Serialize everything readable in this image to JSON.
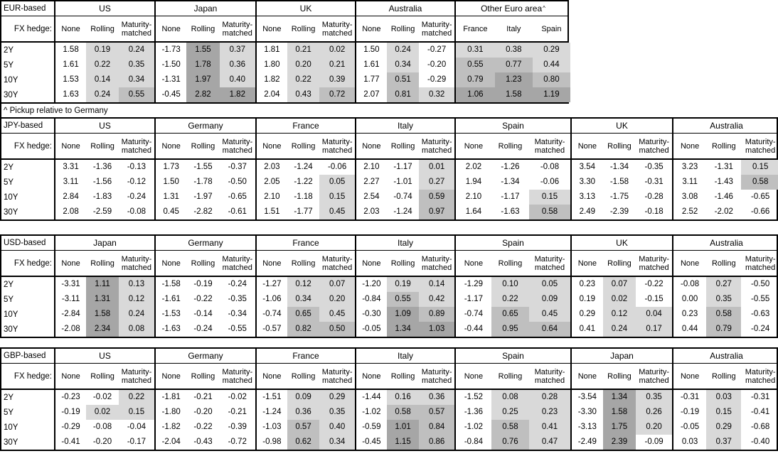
{
  "note": {
    "text": "^ Pickup relative to Germany"
  },
  "labels": {
    "fx_hedge": "FX hedge:",
    "tenors": [
      "2Y",
      "5Y",
      "10Y",
      "30Y"
    ],
    "hedge_columns": [
      "None",
      "Rolling",
      "Maturity-matched"
    ]
  },
  "shading": {
    "low": "#d9d9d9",
    "mid": "#bfbfbf",
    "high": "#a6a6a6",
    "rule": "value 0 to 0.5 = low, 0.5 to 1 = mid, 1+ = high; negatives and None column unshaded"
  },
  "tables": [
    {
      "label": "EUR-based",
      "blocks": [
        {
          "country": "US",
          "rows": [
            [
              "1.58",
              "0.19",
              "0.24"
            ],
            [
              "1.61",
              "0.22",
              "0.35"
            ],
            [
              "1.53",
              "0.14",
              "0.34"
            ],
            [
              "1.63",
              "0.24",
              "0.55"
            ]
          ]
        },
        {
          "country": "Japan",
          "rows": [
            [
              "-1.73",
              "1.55",
              "0.37"
            ],
            [
              "-1.50",
              "1.78",
              "0.36"
            ],
            [
              "-1.31",
              "1.97",
              "0.40"
            ],
            [
              "-0.45",
              "2.82",
              "1.82"
            ]
          ]
        },
        {
          "country": "UK",
          "rows": [
            [
              "1.81",
              "0.21",
              "0.02"
            ],
            [
              "1.80",
              "0.20",
              "0.21"
            ],
            [
              "1.82",
              "0.22",
              "0.39"
            ],
            [
              "2.04",
              "0.43",
              "0.72"
            ]
          ]
        },
        {
          "country": "Australia",
          "rows": [
            [
              "1.50",
              "0.24",
              "-0.27"
            ],
            [
              "1.61",
              "0.34",
              "-0.20"
            ],
            [
              "1.77",
              "0.51",
              "-0.29"
            ],
            [
              "2.07",
              "0.81",
              "0.32"
            ]
          ]
        },
        {
          "country": "Other Euro area",
          "sup": "^",
          "columns": [
            "France",
            "Italy",
            "Spain"
          ],
          "shade_from_col": 0,
          "rows": [
            [
              "0.31",
              "0.38",
              "0.29"
            ],
            [
              "0.55",
              "0.77",
              "0.44"
            ],
            [
              "0.79",
              "1.23",
              "0.80"
            ],
            [
              "1.06",
              "1.58",
              "1.19"
            ]
          ]
        }
      ]
    },
    {
      "label": "JPY-based",
      "blocks": [
        {
          "country": "US",
          "rows": [
            [
              "3.31",
              "-1.36",
              "-0.13"
            ],
            [
              "3.11",
              "-1.56",
              "-0.12"
            ],
            [
              "2.84",
              "-1.83",
              "-0.24"
            ],
            [
              "2.08",
              "-2.59",
              "-0.08"
            ]
          ]
        },
        {
          "country": "Germany",
          "rows": [
            [
              "1.73",
              "-1.55",
              "-0.37"
            ],
            [
              "1.50",
              "-1.78",
              "-0.50"
            ],
            [
              "1.31",
              "-1.97",
              "-0.65"
            ],
            [
              "0.45",
              "-2.82",
              "-0.61"
            ]
          ]
        },
        {
          "country": "France",
          "rows": [
            [
              "2.03",
              "-1.24",
              "-0.06"
            ],
            [
              "2.05",
              "-1.22",
              "0.05"
            ],
            [
              "2.10",
              "-1.18",
              "0.15"
            ],
            [
              "1.51",
              "-1.77",
              "0.45"
            ]
          ]
        },
        {
          "country": "Italy",
          "rows": [
            [
              "2.10",
              "-1.17",
              "0.01"
            ],
            [
              "2.27",
              "-1.01",
              "0.27"
            ],
            [
              "2.54",
              "-0.74",
              "0.59"
            ],
            [
              "2.03",
              "-1.24",
              "0.97"
            ]
          ]
        },
        {
          "country": "Spain",
          "rows": [
            [
              "2.02",
              "-1.26",
              "-0.08"
            ],
            [
              "1.94",
              "-1.34",
              "-0.06"
            ],
            [
              "2.10",
              "-1.17",
              "0.15"
            ],
            [
              "1.64",
              "-1.63",
              "0.58"
            ]
          ]
        },
        {
          "country": "UK",
          "rows": [
            [
              "3.54",
              "-1.34",
              "-0.35"
            ],
            [
              "3.30",
              "-1.58",
              "-0.31"
            ],
            [
              "3.13",
              "-1.75",
              "-0.28"
            ],
            [
              "2.49",
              "-2.39",
              "-0.18"
            ]
          ]
        },
        {
          "country": "Australia",
          "rows": [
            [
              "3.23",
              "-1.31",
              "0.15"
            ],
            [
              "3.11",
              "-1.43",
              "0.58"
            ],
            [
              "3.08",
              "-1.46",
              "-0.65"
            ],
            [
              "2.52",
              "-2.02",
              "-0.66"
            ]
          ]
        }
      ]
    },
    {
      "label": "USD-based",
      "blocks": [
        {
          "country": "Japan",
          "rows": [
            [
              "-3.31",
              "1.11",
              "0.13"
            ],
            [
              "-3.11",
              "1.31",
              "0.12"
            ],
            [
              "-2.84",
              "1.58",
              "0.24"
            ],
            [
              "-2.08",
              "2.34",
              "0.08"
            ]
          ]
        },
        {
          "country": "Germany",
          "rows": [
            [
              "-1.58",
              "-0.19",
              "-0.24"
            ],
            [
              "-1.61",
              "-0.22",
              "-0.35"
            ],
            [
              "-1.53",
              "-0.14",
              "-0.34"
            ],
            [
              "-1.63",
              "-0.24",
              "-0.55"
            ]
          ]
        },
        {
          "country": "France",
          "rows": [
            [
              "-1.27",
              "0.12",
              "0.07"
            ],
            [
              "-1.06",
              "0.34",
              "0.20"
            ],
            [
              "-0.74",
              "0.65",
              "0.45"
            ],
            [
              "-0.57",
              "0.82",
              "0.50"
            ]
          ]
        },
        {
          "country": "Italy",
          "rows": [
            [
              "-1.20",
              "0.19",
              "0.14"
            ],
            [
              "-0.84",
              "0.55",
              "0.42"
            ],
            [
              "-0.30",
              "1.09",
              "0.89"
            ],
            [
              "-0.05",
              "1.34",
              "1.03"
            ]
          ]
        },
        {
          "country": "Spain",
          "rows": [
            [
              "-1.29",
              "0.10",
              "0.05"
            ],
            [
              "-1.17",
              "0.22",
              "0.09"
            ],
            [
              "-0.74",
              "0.65",
              "0.45"
            ],
            [
              "-0.44",
              "0.95",
              "0.64"
            ]
          ]
        },
        {
          "country": "UK",
          "rows": [
            [
              "0.23",
              "0.07",
              "-0.22"
            ],
            [
              "0.19",
              "0.02",
              "-0.15"
            ],
            [
              "0.29",
              "0.12",
              "0.04"
            ],
            [
              "0.41",
              "0.24",
              "0.17"
            ]
          ]
        },
        {
          "country": "Australia",
          "rows": [
            [
              "-0.08",
              "0.27",
              "-0.50"
            ],
            [
              "0.00",
              "0.35",
              "-0.55"
            ],
            [
              "0.23",
              "0.58",
              "-0.63"
            ],
            [
              "0.44",
              "0.79",
              "-0.24"
            ]
          ]
        }
      ]
    },
    {
      "label": "GBP-based",
      "blocks": [
        {
          "country": "US",
          "rows": [
            [
              "-0.23",
              "-0.02",
              "0.22"
            ],
            [
              "-0.19",
              "0.02",
              "0.15"
            ],
            [
              "-0.29",
              "-0.08",
              "-0.04"
            ],
            [
              "-0.41",
              "-0.20",
              "-0.17"
            ]
          ]
        },
        {
          "country": "Germany",
          "rows": [
            [
              "-1.81",
              "-0.21",
              "-0.02"
            ],
            [
              "-1.80",
              "-0.20",
              "-0.21"
            ],
            [
              "-1.82",
              "-0.22",
              "-0.39"
            ],
            [
              "-2.04",
              "-0.43",
              "-0.72"
            ]
          ]
        },
        {
          "country": "France",
          "rows": [
            [
              "-1.51",
              "0.09",
              "0.29"
            ],
            [
              "-1.24",
              "0.36",
              "0.35"
            ],
            [
              "-1.03",
              "0.57",
              "0.40"
            ],
            [
              "-0.98",
              "0.62",
              "0.34"
            ]
          ]
        },
        {
          "country": "Italy",
          "rows": [
            [
              "-1.44",
              "0.16",
              "0.36"
            ],
            [
              "-1.02",
              "0.58",
              "0.57"
            ],
            [
              "-0.59",
              "1.01",
              "0.84"
            ],
            [
              "-0.45",
              "1.15",
              "0.86"
            ]
          ]
        },
        {
          "country": "Spain",
          "rows": [
            [
              "-1.52",
              "0.08",
              "0.28"
            ],
            [
              "-1.36",
              "0.25",
              "0.23"
            ],
            [
              "-1.02",
              "0.58",
              "0.41"
            ],
            [
              "-0.84",
              "0.76",
              "0.47"
            ]
          ]
        },
        {
          "country": "Japan",
          "rows": [
            [
              "-3.54",
              "1.34",
              "0.35"
            ],
            [
              "-3.30",
              "1.58",
              "0.26"
            ],
            [
              "-3.13",
              "1.75",
              "0.20"
            ],
            [
              "-2.49",
              "2.39",
              "-0.09"
            ]
          ]
        },
        {
          "country": "Australia",
          "rows": [
            [
              "-0.31",
              "0.03",
              "-0.31"
            ],
            [
              "-0.19",
              "0.15",
              "-0.41"
            ],
            [
              "-0.05",
              "0.29",
              "-0.68"
            ],
            [
              "0.03",
              "0.37",
              "-0.40"
            ]
          ]
        }
      ]
    }
  ]
}
